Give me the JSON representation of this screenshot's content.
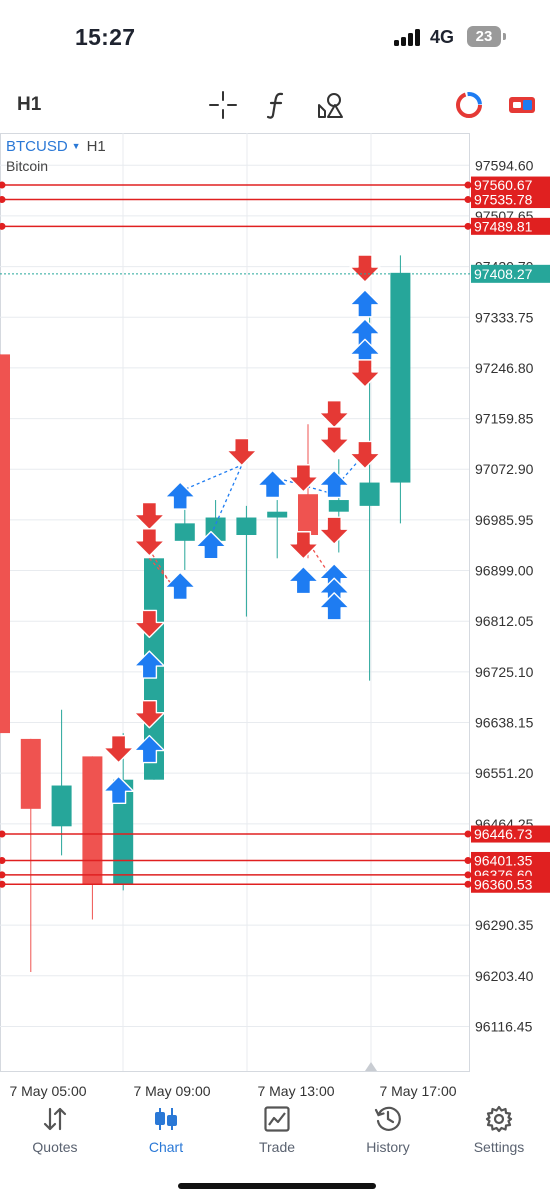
{
  "status_bar": {
    "time": "15:27",
    "network": "4G",
    "battery": "23"
  },
  "toolbar": {
    "timeframe": "H1"
  },
  "symbol": {
    "name": "BTCUSD",
    "timeframe": "H1",
    "description": "Bitcoin"
  },
  "colors": {
    "bull": "#26a69a",
    "bear": "#ef5350",
    "buy_arrow": "#1e7cf2",
    "sell_arrow": "#e53935",
    "level_line": "#e02020",
    "accent": "#2a78d6"
  },
  "chart_data": {
    "type": "candlestick",
    "symbol": "BTCUSD",
    "timeframe": "H1",
    "y_axis": {
      "min": 96040,
      "max": 97650,
      "tick_labels": [
        "97594.60",
        "97507.65",
        "97420.70",
        "97333.75",
        "97246.80",
        "97159.85",
        "97072.90",
        "96985.95",
        "96899.00",
        "96812.05",
        "96725.10",
        "96638.15",
        "96551.20",
        "96464.25",
        "96377.30",
        "96290.35",
        "96203.40",
        "96116.45"
      ]
    },
    "x_axis": {
      "tick_labels": [
        "7 May 05:00",
        "7 May 09:00",
        "7 May 13:00",
        "7 May 17:00"
      ]
    },
    "candles": [
      {
        "o": 97270,
        "h": 97270,
        "l": 96620,
        "c": 96620
      },
      {
        "o": 96610,
        "h": 96610,
        "l": 96210,
        "c": 96490
      },
      {
        "o": 96460,
        "h": 96660,
        "l": 96410,
        "c": 96530
      },
      {
        "o": 96580,
        "h": 96580,
        "l": 96300,
        "c": 96360
      },
      {
        "o": 96360,
        "h": 96620,
        "l": 96350,
        "c": 96540
      },
      {
        "o": 96540,
        "h": 96920,
        "l": 96540,
        "c": 96920
      },
      {
        "o": 96950,
        "h": 97010,
        "l": 96900,
        "c": 96980
      },
      {
        "o": 96950,
        "h": 97020,
        "l": 96930,
        "c": 96990
      },
      {
        "o": 96960,
        "h": 97010,
        "l": 96820,
        "c": 96990
      },
      {
        "o": 96990,
        "h": 97020,
        "l": 96920,
        "c": 97000
      },
      {
        "o": 97030,
        "h": 97150,
        "l": 96920,
        "c": 96960
      },
      {
        "o": 97000,
        "h": 97090,
        "l": 96930,
        "c": 97020
      },
      {
        "o": 97010,
        "h": 97340,
        "l": 96710,
        "c": 97050
      },
      {
        "o": 97050,
        "h": 97440,
        "l": 96980,
        "c": 97410
      }
    ],
    "horizontal_levels": [
      {
        "price": 97560.67,
        "label": "97560.67"
      },
      {
        "price": 97535.78,
        "label": "97535.78"
      },
      {
        "price": 97489.81,
        "label": "97489.81"
      },
      {
        "price": 96446.73,
        "label": "96446.73"
      },
      {
        "price": 96401.35,
        "label": "96401.35"
      },
      {
        "price": 96376.6,
        "label": "96376.60"
      },
      {
        "price": 96360.53,
        "label": "96360.53"
      }
    ],
    "current_price": {
      "price": 97408.27,
      "label": "97408.27"
    },
    "signals": [
      {
        "type": "sell",
        "bar": 3.85,
        "price": 96595
      },
      {
        "type": "buy",
        "bar": 3.85,
        "price": 96520
      },
      {
        "type": "sell",
        "bar": 4.85,
        "price": 96995
      },
      {
        "type": "sell",
        "bar": 4.85,
        "price": 96950
      },
      {
        "type": "sell",
        "bar": 4.85,
        "price": 96810
      },
      {
        "type": "buy",
        "bar": 4.85,
        "price": 96735
      },
      {
        "type": "sell",
        "bar": 4.85,
        "price": 96655
      },
      {
        "type": "buy",
        "bar": 4.85,
        "price": 96590
      },
      {
        "type": "buy",
        "bar": 5.85,
        "price": 97025
      },
      {
        "type": "buy",
        "bar": 5.85,
        "price": 96870
      },
      {
        "type": "buy",
        "bar": 6.85,
        "price": 96940
      },
      {
        "type": "sell",
        "bar": 7.85,
        "price": 97105
      },
      {
        "type": "buy",
        "bar": 8.85,
        "price": 97045
      },
      {
        "type": "sell",
        "bar": 9.85,
        "price": 97060
      },
      {
        "type": "sell",
        "bar": 9.85,
        "price": 96945
      },
      {
        "type": "buy",
        "bar": 9.85,
        "price": 96880
      },
      {
        "type": "sell",
        "bar": 10.85,
        "price": 97170
      },
      {
        "type": "sell",
        "bar": 10.85,
        "price": 97125
      },
      {
        "type": "buy",
        "bar": 10.85,
        "price": 97045
      },
      {
        "type": "sell",
        "bar": 10.85,
        "price": 96970
      },
      {
        "type": "buy",
        "bar": 10.85,
        "price": 96885
      },
      {
        "type": "buy",
        "bar": 10.85,
        "price": 96860
      },
      {
        "type": "buy",
        "bar": 10.85,
        "price": 96835
      },
      {
        "type": "sell",
        "bar": 11.85,
        "price": 97420
      },
      {
        "type": "buy",
        "bar": 11.85,
        "price": 97355
      },
      {
        "type": "buy",
        "bar": 11.85,
        "price": 97305
      },
      {
        "type": "buy",
        "bar": 11.85,
        "price": 97270
      },
      {
        "type": "sell",
        "bar": 11.85,
        "price": 97240
      },
      {
        "type": "sell",
        "bar": 11.85,
        "price": 97100
      }
    ],
    "connectors": [
      {
        "color": "bear",
        "from": [
          4.85,
          96935
        ],
        "to": [
          5.85,
          96850
        ]
      },
      {
        "color": "bear",
        "from": [
          4.85,
          96920
        ],
        "to": [
          5.85,
          96860
        ]
      },
      {
        "color": "buy",
        "from": [
          5.85,
          97035
        ],
        "to": [
          7.85,
          97080
        ]
      },
      {
        "color": "buy",
        "from": [
          6.85,
          96960
        ],
        "to": [
          7.85,
          97080
        ]
      },
      {
        "color": "buy",
        "from": [
          8.85,
          97060
        ],
        "to": [
          10.85,
          97030
        ]
      },
      {
        "color": "buy",
        "from": [
          10.85,
          97040
        ],
        "to": [
          11.85,
          97100
        ]
      },
      {
        "color": "bear",
        "from": [
          9.85,
          96960
        ],
        "to": [
          10.85,
          96880
        ]
      }
    ],
    "grid": true
  },
  "nav": [
    {
      "label": "Quotes"
    },
    {
      "label": "Chart"
    },
    {
      "label": "Trade"
    },
    {
      "label": "History"
    },
    {
      "label": "Settings"
    }
  ]
}
